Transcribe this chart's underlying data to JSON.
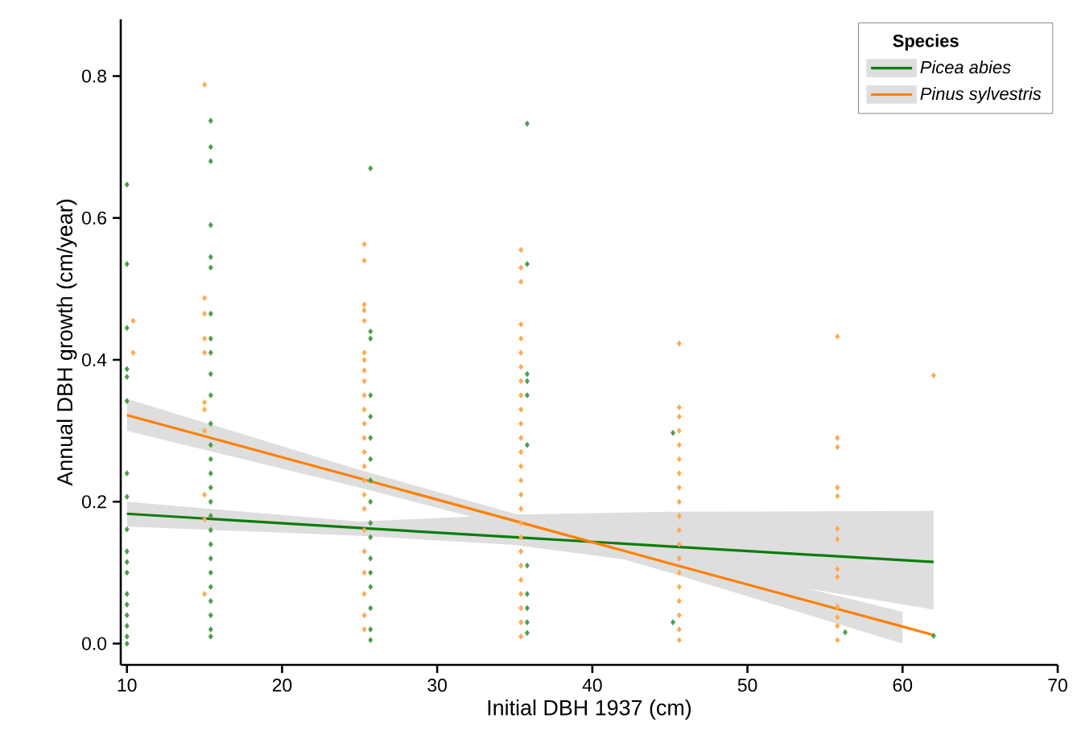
{
  "chart_data": {
    "type": "scatter",
    "xlabel": "Initial DBH 1937 (cm)",
    "ylabel": "Annual DBH growth (cm/year)",
    "legend_title": "Species",
    "legend": "top right",
    "marker": "diamond",
    "xlim": [
      9.6,
      70
    ],
    "ylim": [
      -0.03,
      0.88
    ],
    "xticks": [
      10,
      20,
      30,
      40,
      50,
      60,
      70
    ],
    "yticks": [
      {
        "value": 0,
        "label": "0.0"
      },
      {
        "value": 0.2,
        "label": "0.2"
      },
      {
        "value": 0.4,
        "label": "0.4"
      },
      {
        "value": 0.6,
        "label": "0.6"
      },
      {
        "value": 0.8,
        "label": "0.8"
      }
    ],
    "series": [
      {
        "color": "#4a9e4a",
        "x": [
          10,
          10,
          10,
          10,
          10,
          10,
          10,
          10,
          10,
          10,
          10,
          10,
          10,
          10,
          10,
          10,
          10,
          10,
          15.4,
          15.4,
          15.4,
          15.4,
          15.4,
          15.4,
          15.4,
          15.4,
          15.4,
          15.4,
          15.4,
          15.4,
          15.4,
          15.4,
          15.4,
          15.4,
          15.4,
          15.4,
          15.4,
          15.4,
          15.4,
          15.4,
          15.4,
          15.4,
          15.4,
          15.4,
          15.4,
          25.7,
          25.7,
          25.7,
          25.7,
          25.7,
          25.7,
          25.7,
          25.7,
          25.7,
          25.7,
          25.7,
          25.7,
          25.7,
          25.7,
          25.7,
          25.7,
          25.7,
          35.8,
          35.8,
          35.8,
          35.8,
          35.8,
          35.8,
          35.8,
          35.8,
          35.8,
          35.8,
          35.8,
          45.2,
          45.2,
          56.3,
          62
        ],
        "values": [
          0.647,
          0.535,
          0.445,
          0.387,
          0.376,
          0.342,
          0.24,
          0.207,
          0.161,
          0.13,
          0.115,
          0.1,
          0.07,
          0.055,
          0.04,
          0.025,
          0.01,
          0.0,
          0.737,
          0.7,
          0.68,
          0.59,
          0.545,
          0.53,
          0.465,
          0.43,
          0.41,
          0.38,
          0.35,
          0.31,
          0.28,
          0.26,
          0.24,
          0.22,
          0.2,
          0.18,
          0.16,
          0.14,
          0.12,
          0.1,
          0.08,
          0.06,
          0.04,
          0.02,
          0.01,
          0.67,
          0.44,
          0.43,
          0.35,
          0.32,
          0.29,
          0.26,
          0.23,
          0.2,
          0.17,
          0.15,
          0.12,
          0.1,
          0.08,
          0.05,
          0.02,
          0.005,
          0.733,
          0.535,
          0.38,
          0.37,
          0.35,
          0.28,
          0.11,
          0.07,
          0.05,
          0.03,
          0.015,
          0.297,
          0.03,
          0.016,
          0.011
        ]
      },
      {
        "color": "#ffa94d",
        "x": [
          10.4,
          10.4,
          15,
          15,
          15,
          15,
          15,
          15,
          15,
          15,
          15,
          15,
          15,
          25.3,
          25.3,
          25.3,
          25.3,
          25.3,
          25.3,
          25.3,
          25.3,
          25.3,
          25.3,
          25.3,
          25.3,
          25.3,
          25.3,
          25.3,
          25.3,
          25.3,
          25.3,
          25.3,
          25.3,
          25.3,
          25.3,
          25.3,
          25.3,
          35.4,
          35.4,
          35.4,
          35.4,
          35.4,
          35.4,
          35.4,
          35.4,
          35.4,
          35.4,
          35.4,
          35.4,
          35.4,
          35.4,
          35.4,
          35.4,
          35.4,
          35.4,
          35.4,
          35.4,
          35.4,
          35.4,
          35.4,
          35.4,
          35.4,
          35.4,
          45.6,
          45.6,
          45.6,
          45.6,
          45.6,
          45.6,
          45.6,
          45.6,
          45.6,
          45.6,
          45.6,
          45.6,
          45.6,
          45.6,
          45.6,
          45.6,
          45.6,
          45.6,
          45.6,
          55.8,
          55.8,
          55.8,
          55.8,
          55.8,
          55.8,
          55.8,
          55.8,
          55.8,
          55.8,
          55.8,
          55.8,
          55.8,
          62
        ],
        "values": [
          0.455,
          0.41,
          0.788,
          0.487,
          0.465,
          0.43,
          0.41,
          0.34,
          0.33,
          0.3,
          0.21,
          0.175,
          0.07,
          0.563,
          0.54,
          0.478,
          0.47,
          0.455,
          0.41,
          0.4,
          0.385,
          0.37,
          0.35,
          0.33,
          0.31,
          0.29,
          0.27,
          0.25,
          0.23,
          0.21,
          0.19,
          0.16,
          0.13,
          0.1,
          0.07,
          0.04,
          0.02,
          0.555,
          0.53,
          0.51,
          0.45,
          0.43,
          0.41,
          0.39,
          0.37,
          0.35,
          0.33,
          0.31,
          0.29,
          0.27,
          0.25,
          0.23,
          0.21,
          0.19,
          0.17,
          0.15,
          0.13,
          0.11,
          0.09,
          0.07,
          0.05,
          0.03,
          0.01,
          0.423,
          0.333,
          0.32,
          0.3,
          0.28,
          0.26,
          0.24,
          0.22,
          0.2,
          0.18,
          0.16,
          0.14,
          0.12,
          0.1,
          0.08,
          0.06,
          0.04,
          0.02,
          0.005,
          0.433,
          0.29,
          0.277,
          0.22,
          0.208,
          0.162,
          0.147,
          0.105,
          0.094,
          0.052,
          0.037,
          0.025,
          0.005,
          0.378
        ]
      },
      {
        "name": "*Picea abies*",
        "type": "line",
        "color": "#0b7d0b",
        "marker": "none",
        "x": [
          10,
          25,
          35,
          45,
          62
        ],
        "values": [
          0.183,
          0.163,
          0.15,
          0.137,
          0.115
        ],
        "lower": [
          0.165,
          0.152,
          0.139,
          0.11,
          0.048
        ],
        "upper": [
          0.2,
          0.172,
          0.182,
          0.186,
          0.187
        ]
      },
      {
        "name": "*Pinus sylvestris*",
        "type": "line",
        "color": "#ff8000",
        "marker": "none",
        "x": [
          10,
          25,
          35,
          45,
          60,
          62
        ],
        "values": [
          0.322,
          0.233,
          0.173,
          0.113,
          0.024,
          0.012
        ],
        "lower": [
          0.3,
          0.22,
          0.163,
          0.1,
          0.0,
          null
        ],
        "upper": [
          0.345,
          0.245,
          0.183,
          0.125,
          0.045,
          null
        ]
      }
    ]
  }
}
